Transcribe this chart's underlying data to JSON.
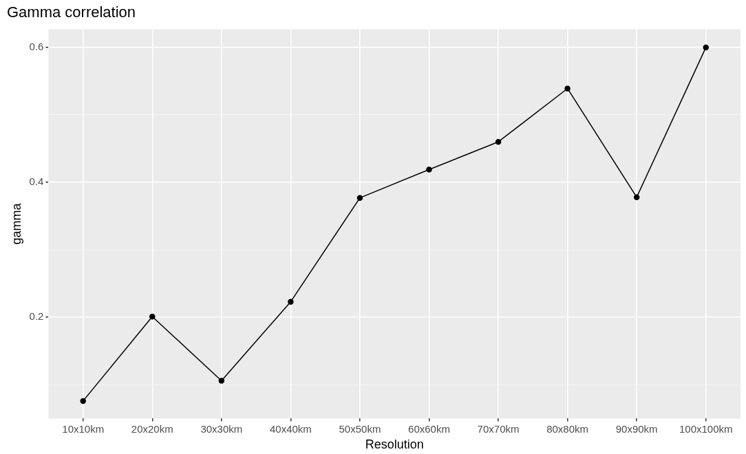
{
  "chart_data": {
    "type": "line",
    "title": "Gamma correlation",
    "xlabel": "Resolution",
    "ylabel": "gamma",
    "categories": [
      "10x10km",
      "20x20km",
      "30x30km",
      "40x40km",
      "50x50km",
      "60x60km",
      "70x70km",
      "80x80km",
      "90x90km",
      "100x100km"
    ],
    "series": [
      {
        "color": "#000000",
        "values": [
          0.076,
          0.201,
          0.106,
          0.223,
          0.377,
          0.419,
          0.46,
          0.539,
          0.378,
          0.6
        ]
      }
    ],
    "ylim": [
      0.05,
      0.627
    ],
    "yticks": [
      {
        "value": 0.1,
        "label": null
      },
      {
        "value": 0.2,
        "label": "0.2"
      },
      {
        "value": 0.3,
        "label": null
      },
      {
        "value": 0.4,
        "label": "0.4"
      },
      {
        "value": 0.5,
        "label": null
      },
      {
        "value": 0.6,
        "label": "0.6"
      }
    ],
    "grid": true,
    "marker": "circle",
    "line_style": "solid"
  }
}
